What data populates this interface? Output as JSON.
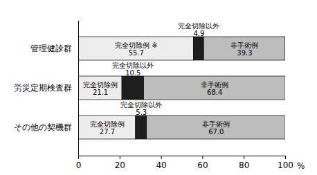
{
  "chart_data": {
    "type": "bar",
    "orientation": "horizontal",
    "stacked": true,
    "data_labels": true,
    "categories": [
      "管理健診群",
      "労災定期検査群",
      "その他の契機群"
    ],
    "series": [
      {
        "name": "完全切除例",
        "color": "#ededed",
        "values": [
          55.7,
          21.1,
          27.7
        ],
        "value_labels": [
          "55.7",
          "21.1",
          "27.7"
        ]
      },
      {
        "name": "完全切除以外",
        "color": "#1e1e1e",
        "values": [
          4.9,
          10.5,
          5.3
        ],
        "value_labels": [
          "4.9",
          "10.5",
          "5.3"
        ]
      },
      {
        "name": "非手術例",
        "color": "#bdbdbd",
        "values": [
          39.3,
          68.4,
          67.0
        ],
        "value_labels": [
          "39.3",
          "68.4",
          "67.0"
        ]
      }
    ],
    "annotations": [
      {
        "category": "管理健診群",
        "series": "完全切除例",
        "text": "※"
      }
    ],
    "x_label": "%",
    "xlim": [
      0,
      100
    ],
    "xticks": [
      0,
      20,
      40,
      60,
      80,
      100
    ]
  }
}
